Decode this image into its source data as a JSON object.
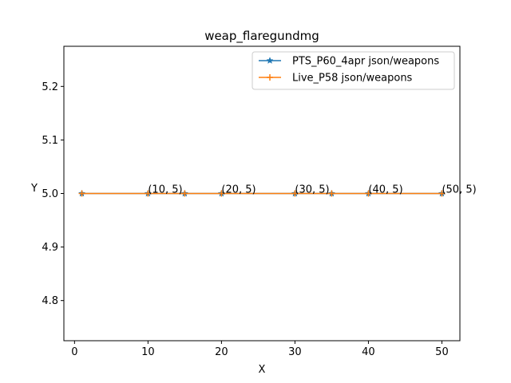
{
  "chart_data": {
    "type": "line",
    "title": "weap_flaregundmg",
    "xlabel": "X",
    "ylabel": "Y",
    "xlim": [
      -1.45,
      52.45
    ],
    "ylim": [
      4.725,
      5.275
    ],
    "xticks": [
      0,
      10,
      20,
      30,
      40,
      50
    ],
    "xtick_labels": [
      "0",
      "10",
      "20",
      "30",
      "40",
      "50"
    ],
    "yticks": [
      4.8,
      4.9,
      5.0,
      5.1,
      5.2
    ],
    "ytick_labels": [
      "4.8",
      "4.9",
      "5.0",
      "5.1",
      "5.2"
    ],
    "legend_position": "upper right",
    "grid": false,
    "series": [
      {
        "name": "PTS_P60_4apr json/weapons",
        "color": "#1f77b4",
        "marker": "star",
        "x": [
          1,
          10,
          15,
          20,
          30,
          35,
          40,
          50
        ],
        "y": [
          5,
          5,
          5,
          5,
          5,
          5,
          5,
          5
        ]
      },
      {
        "name": "Live_P58 json/weapons",
        "color": "#ff7f0e",
        "marker": "plus",
        "x": [
          1,
          10,
          15,
          20,
          30,
          35,
          40,
          50
        ],
        "y": [
          5,
          5,
          5,
          5,
          5,
          5,
          5,
          5
        ]
      }
    ],
    "annotations": [
      {
        "text": "(10, 5)",
        "x": 10,
        "y": 5
      },
      {
        "text": "(20, 5)",
        "x": 20,
        "y": 5
      },
      {
        "text": "(30, 5)",
        "x": 30,
        "y": 5
      },
      {
        "text": "(40, 5)",
        "x": 40,
        "y": 5
      },
      {
        "text": "(50, 5)",
        "x": 50,
        "y": 5
      }
    ]
  }
}
